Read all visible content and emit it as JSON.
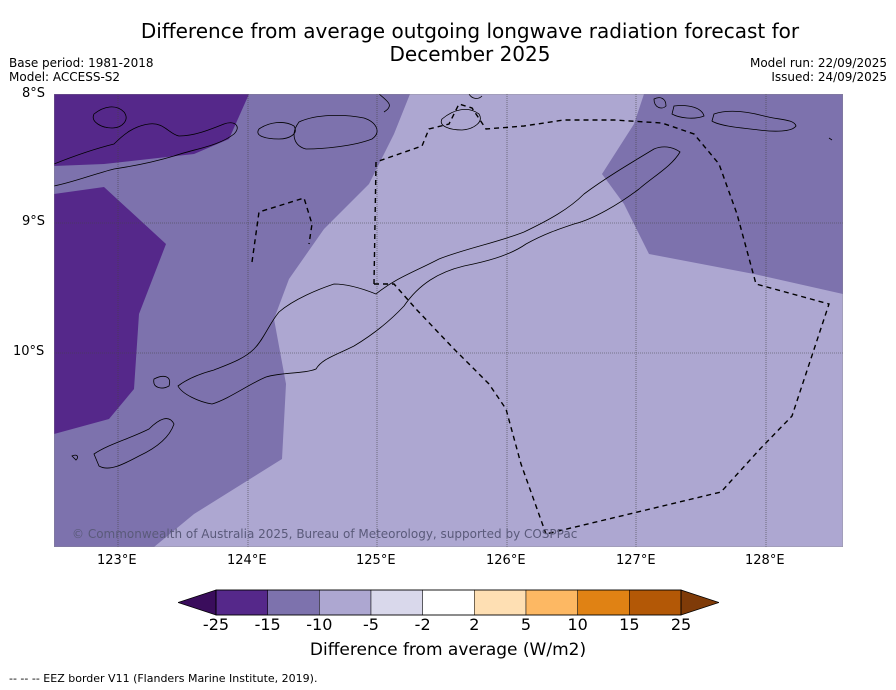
{
  "title": {
    "line1": "Difference from average outgoing longwave radiation forecast for",
    "line2": "December 2025"
  },
  "meta": {
    "base_period": "Base period: 1981-2018",
    "model": "Model: ACCESS-S2",
    "model_run": "Model run: 22/09/2025",
    "issued": "Issued: 24/09/2025"
  },
  "axes": {
    "lat_labels": [
      "8°S",
      "9°S",
      "10°S"
    ],
    "lon_labels": [
      "123°E",
      "124°E",
      "125°E",
      "126°E",
      "127°E",
      "128°E"
    ]
  },
  "map": {
    "copyright": "© Commonwealth of Australia 2025, Bureau of Meteorology, supported by COSPPac"
  },
  "colorbar": {
    "ticks": [
      "-25",
      "-15",
      "-10",
      "-5",
      "-2",
      "2",
      "5",
      "10",
      "15",
      "25"
    ],
    "colors": [
      "#3a0d5c",
      "#55288a",
      "#7d72ad",
      "#ada7d1",
      "#d9d8eb",
      "#ffffff",
      "#fedfb3",
      "#fdb863",
      "#e08214",
      "#b35806",
      "#7f3b08"
    ],
    "label": "Difference from average (W/m2)"
  },
  "footer": {
    "eez_note": "--  --  -- EEZ border V11 (Flanders Marine Institute, 2019)."
  }
}
